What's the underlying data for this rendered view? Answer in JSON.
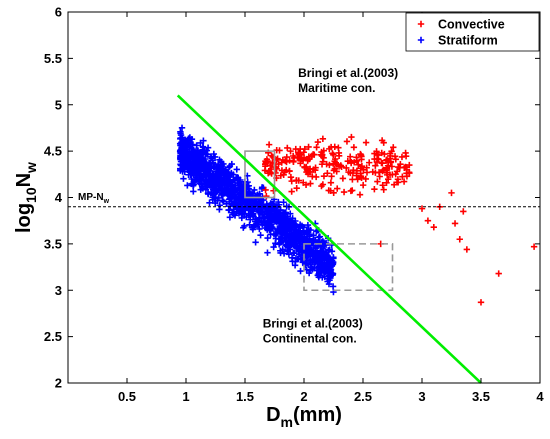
{
  "chart_data": {
    "type": "scatter",
    "xlabel": {
      "main": "D",
      "sub": "m",
      "unit": "(mm)"
    },
    "ylabel": {
      "pre": "log",
      "pre_sub": "10",
      "main": "N",
      "sub": "w"
    },
    "xlim": [
      0,
      4
    ],
    "ylim": [
      2,
      6
    ],
    "xticks": [
      0.5,
      1,
      1.5,
      2,
      2.5,
      3,
      3.5,
      4
    ],
    "xtick_labels": [
      "0.5",
      "1",
      "1.5",
      "2",
      "2.5",
      "3",
      "3.5",
      "4"
    ],
    "yticks": [
      2,
      2.5,
      3,
      3.5,
      4,
      4.5,
      5,
      5.5,
      6
    ],
    "ytick_labels": [
      "2",
      "2.5",
      "3",
      "3.5",
      "4",
      "4.5",
      "5",
      "5.5",
      "6"
    ],
    "legend": {
      "placement": "top-right"
    },
    "series": [
      {
        "name": "Convective",
        "marker": "+",
        "color": "#ff0000",
        "cloud": {
          "x_range": [
            1.45,
            2.9
          ],
          "center_y": 4.35,
          "spread_y": 0.23,
          "n": 260
        },
        "outliers": [
          [
            3.0,
            3.88
          ],
          [
            3.05,
            3.75
          ],
          [
            3.1,
            3.68
          ],
          [
            3.15,
            3.9
          ],
          [
            3.25,
            4.05
          ],
          [
            3.28,
            3.72
          ],
          [
            3.32,
            3.55
          ],
          [
            3.35,
            3.85
          ],
          [
            3.38,
            3.44
          ],
          [
            3.5,
            2.87
          ],
          [
            3.65,
            3.18
          ],
          [
            3.95,
            3.47
          ],
          [
            2.65,
            3.5
          ]
        ]
      },
      {
        "name": "Stratiform",
        "marker": "+",
        "color": "#0000ff",
        "cloud": {
          "x_range": [
            0.95,
            2.25
          ],
          "center_line": [
            [
              0.95,
              4.5
            ],
            [
              2.2,
              3.3
            ]
          ],
          "spread_y": 0.2,
          "n": 1400
        }
      }
    ],
    "reference_lines": [
      {
        "label": "MP-N",
        "label_sub": "w",
        "y": 3.9,
        "style": "dashed",
        "color": "#000000"
      },
      {
        "kind": "line",
        "color": "#00ee00",
        "points": [
          [
            0.93,
            5.1
          ],
          [
            3.5,
            2.0
          ]
        ]
      }
    ],
    "boxes": [
      {
        "kind": "Maritime",
        "x": [
          1.5,
          1.75
        ],
        "y": [
          4.0,
          4.5
        ],
        "color": "#999999"
      },
      {
        "kind": "Continental",
        "x": [
          2.0,
          2.75
        ],
        "y": [
          3.0,
          3.5
        ],
        "color": "#999999"
      }
    ],
    "annotations": [
      {
        "lines": [
          "Bringi et al.(2003)",
          "Maritime con."
        ],
        "x": 1.95,
        "y": 5.3
      },
      {
        "lines": [
          "Bringi et al.(2003)",
          "Continental con."
        ],
        "x": 1.65,
        "y": 2.6
      }
    ]
  }
}
